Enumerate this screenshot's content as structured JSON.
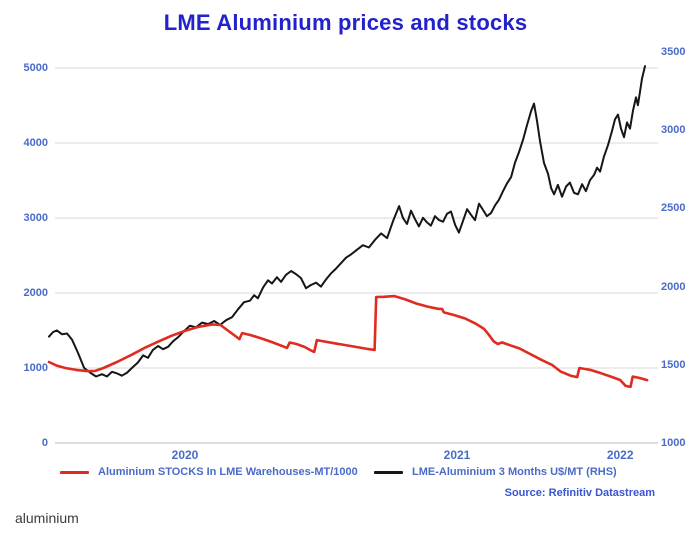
{
  "title": "LME Aluminium prices and stocks",
  "source": "Source: Refinitiv Datastream",
  "watermark": "aluminium",
  "colors": {
    "title": "#2222cc",
    "axis_label": "#4a6bc8",
    "legend_label": "#4a6bc8",
    "source": "#3a55d0",
    "gridline": "#d9d9d9",
    "baseline": "#b8b8b8",
    "stocks_line": "#e02b20",
    "price_line": "#161616"
  },
  "chart_data": {
    "type": "line",
    "title": "LME Aluminium prices and stocks",
    "grid": "horizontal",
    "legend_position": "bottom",
    "x": {
      "range": [
        2020.0,
        2022.25
      ],
      "ticks": [
        {
          "label": "2020",
          "pos": 2020.5
        },
        {
          "label": "2021",
          "pos": 2021.5
        },
        {
          "label": "2022",
          "pos": 2022.1
        }
      ]
    },
    "y_left": {
      "range": [
        0,
        5000
      ],
      "ticks": [
        "0",
        "1000",
        "2000",
        "3000",
        "4000",
        "5000"
      ]
    },
    "y_right": {
      "range": [
        1000,
        3500
      ],
      "ticks": [
        "1000",
        "1500",
        "2000",
        "2500",
        "3000",
        "3500"
      ]
    },
    "series": [
      {
        "name": "LME-Aluminium 3 Months U$/MT (RHS)",
        "axis": "right",
        "color": "#161616",
        "points": [
          [
            2020.0,
            1680
          ],
          [
            2020.015,
            1710
          ],
          [
            2020.029,
            1720
          ],
          [
            2020.048,
            1695
          ],
          [
            2020.066,
            1700
          ],
          [
            2020.085,
            1660
          ],
          [
            2020.107,
            1575
          ],
          [
            2020.129,
            1480
          ],
          [
            2020.151,
            1450
          ],
          [
            2020.173,
            1425
          ],
          [
            2020.195,
            1440
          ],
          [
            2020.213,
            1425
          ],
          [
            2020.232,
            1455
          ],
          [
            2020.25,
            1445
          ],
          [
            2020.268,
            1430
          ],
          [
            2020.287,
            1450
          ],
          [
            2020.305,
            1480
          ],
          [
            2020.327,
            1515
          ],
          [
            2020.346,
            1560
          ],
          [
            2020.364,
            1545
          ],
          [
            2020.382,
            1595
          ],
          [
            2020.401,
            1620
          ],
          [
            2020.419,
            1600
          ],
          [
            2020.438,
            1615
          ],
          [
            2020.456,
            1650
          ],
          [
            2020.474,
            1675
          ],
          [
            2020.496,
            1715
          ],
          [
            2020.518,
            1750
          ],
          [
            2020.54,
            1740
          ],
          [
            2020.563,
            1770
          ],
          [
            2020.585,
            1760
          ],
          [
            2020.607,
            1780
          ],
          [
            2020.629,
            1755
          ],
          [
            2020.651,
            1785
          ],
          [
            2020.673,
            1805
          ],
          [
            2020.695,
            1855
          ],
          [
            2020.717,
            1900
          ],
          [
            2020.739,
            1910
          ],
          [
            2020.754,
            1945
          ],
          [
            2020.768,
            1925
          ],
          [
            2020.787,
            1995
          ],
          [
            2020.805,
            2040
          ],
          [
            2020.82,
            2020
          ],
          [
            2020.838,
            2060
          ],
          [
            2020.853,
            2030
          ],
          [
            2020.871,
            2075
          ],
          [
            2020.89,
            2100
          ],
          [
            2020.908,
            2080
          ],
          [
            2020.926,
            2055
          ],
          [
            2020.945,
            1990
          ],
          [
            2020.963,
            2010
          ],
          [
            2020.982,
            2025
          ],
          [
            2021.0,
            2000
          ],
          [
            2021.018,
            2045
          ],
          [
            2021.037,
            2085
          ],
          [
            2021.055,
            2115
          ],
          [
            2021.074,
            2150
          ],
          [
            2021.092,
            2185
          ],
          [
            2021.11,
            2205
          ],
          [
            2021.132,
            2235
          ],
          [
            2021.154,
            2265
          ],
          [
            2021.176,
            2250
          ],
          [
            2021.199,
            2300
          ],
          [
            2021.221,
            2340
          ],
          [
            2021.243,
            2310
          ],
          [
            2021.265,
            2420
          ],
          [
            2021.287,
            2515
          ],
          [
            2021.301,
            2440
          ],
          [
            2021.316,
            2400
          ],
          [
            2021.331,
            2485
          ],
          [
            2021.346,
            2430
          ],
          [
            2021.36,
            2385
          ],
          [
            2021.375,
            2440
          ],
          [
            2021.39,
            2410
          ],
          [
            2021.404,
            2390
          ],
          [
            2021.419,
            2450
          ],
          [
            2021.434,
            2425
          ],
          [
            2021.449,
            2415
          ],
          [
            2021.463,
            2465
          ],
          [
            2021.478,
            2480
          ],
          [
            2021.493,
            2395
          ],
          [
            2021.507,
            2345
          ],
          [
            2021.522,
            2420
          ],
          [
            2021.537,
            2495
          ],
          [
            2021.551,
            2460
          ],
          [
            2021.566,
            2425
          ],
          [
            2021.581,
            2530
          ],
          [
            2021.596,
            2490
          ],
          [
            2021.61,
            2450
          ],
          [
            2021.625,
            2470
          ],
          [
            2021.64,
            2520
          ],
          [
            2021.654,
            2555
          ],
          [
            2021.669,
            2610
          ],
          [
            2021.684,
            2660
          ],
          [
            2021.699,
            2700
          ],
          [
            2021.713,
            2790
          ],
          [
            2021.728,
            2860
          ],
          [
            2021.743,
            2940
          ],
          [
            2021.757,
            3030
          ],
          [
            2021.772,
            3120
          ],
          [
            2021.783,
            3170
          ],
          [
            2021.794,
            3060
          ],
          [
            2021.805,
            2930
          ],
          [
            2021.82,
            2790
          ],
          [
            2021.835,
            2720
          ],
          [
            2021.846,
            2630
          ],
          [
            2021.857,
            2590
          ],
          [
            2021.871,
            2650
          ],
          [
            2021.886,
            2575
          ],
          [
            2021.901,
            2640
          ],
          [
            2021.915,
            2665
          ],
          [
            2021.93,
            2600
          ],
          [
            2021.945,
            2590
          ],
          [
            2021.96,
            2655
          ],
          [
            2021.974,
            2610
          ],
          [
            2021.989,
            2680
          ],
          [
            2022.004,
            2715
          ],
          [
            2022.015,
            2760
          ],
          [
            2022.026,
            2735
          ],
          [
            2022.04,
            2830
          ],
          [
            2022.055,
            2905
          ],
          [
            2022.07,
            2995
          ],
          [
            2022.081,
            3070
          ],
          [
            2022.092,
            3100
          ],
          [
            2022.103,
            3010
          ],
          [
            2022.114,
            2955
          ],
          [
            2022.125,
            3050
          ],
          [
            2022.136,
            3010
          ],
          [
            2022.147,
            3125
          ],
          [
            2022.158,
            3210
          ],
          [
            2022.165,
            3160
          ],
          [
            2022.173,
            3250
          ],
          [
            2022.18,
            3330
          ],
          [
            2022.191,
            3410
          ]
        ]
      },
      {
        "name": "Aluminium STOCKS In LME Warehouses-MT/1000",
        "axis": "left",
        "color": "#e02b20",
        "points": [
          [
            2020.0,
            1080
          ],
          [
            2020.03,
            1030
          ],
          [
            2020.06,
            1000
          ],
          [
            2020.1,
            975
          ],
          [
            2020.14,
            958
          ],
          [
            2020.17,
            962
          ],
          [
            2020.2,
            1000
          ],
          [
            2020.25,
            1080
          ],
          [
            2020.3,
            1170
          ],
          [
            2020.35,
            1265
          ],
          [
            2020.4,
            1350
          ],
          [
            2020.45,
            1430
          ],
          [
            2020.5,
            1495
          ],
          [
            2020.55,
            1550
          ],
          [
            2020.6,
            1580
          ],
          [
            2020.63,
            1575
          ],
          [
            2020.65,
            1520
          ],
          [
            2020.68,
            1440
          ],
          [
            2020.7,
            1385
          ],
          [
            2020.71,
            1465
          ],
          [
            2020.74,
            1440
          ],
          [
            2020.78,
            1395
          ],
          [
            2020.82,
            1345
          ],
          [
            2020.86,
            1290
          ],
          [
            2020.875,
            1268
          ],
          [
            2020.885,
            1340
          ],
          [
            2020.91,
            1320
          ],
          [
            2020.94,
            1280
          ],
          [
            2020.96,
            1240
          ],
          [
            2020.975,
            1215
          ],
          [
            2020.985,
            1372
          ],
          [
            2021.01,
            1355
          ],
          [
            2021.05,
            1330
          ],
          [
            2021.09,
            1305
          ],
          [
            2021.13,
            1280
          ],
          [
            2021.17,
            1255
          ],
          [
            2021.197,
            1242
          ],
          [
            2021.203,
            1945
          ],
          [
            2021.23,
            1950
          ],
          [
            2021.27,
            1958
          ],
          [
            2021.31,
            1915
          ],
          [
            2021.35,
            1860
          ],
          [
            2021.39,
            1820
          ],
          [
            2021.43,
            1790
          ],
          [
            2021.445,
            1788
          ],
          [
            2021.452,
            1742
          ],
          [
            2021.49,
            1705
          ],
          [
            2021.53,
            1660
          ],
          [
            2021.57,
            1590
          ],
          [
            2021.6,
            1520
          ],
          [
            2021.62,
            1430
          ],
          [
            2021.635,
            1355
          ],
          [
            2021.65,
            1320
          ],
          [
            2021.665,
            1342
          ],
          [
            2021.69,
            1310
          ],
          [
            2021.73,
            1260
          ],
          [
            2021.77,
            1185
          ],
          [
            2021.81,
            1110
          ],
          [
            2021.85,
            1040
          ],
          [
            2021.88,
            955
          ],
          [
            2021.92,
            895
          ],
          [
            2021.942,
            878
          ],
          [
            2021.95,
            1000
          ],
          [
            2021.99,
            975
          ],
          [
            2022.03,
            930
          ],
          [
            2022.07,
            880
          ],
          [
            2022.1,
            840
          ],
          [
            2022.12,
            762
          ],
          [
            2022.138,
            748
          ],
          [
            2022.146,
            885
          ],
          [
            2022.17,
            868
          ],
          [
            2022.199,
            838
          ]
        ]
      }
    ]
  },
  "legend": {
    "stocks_label": "Aluminium STOCKS In LME Warehouses-MT/1000",
    "price_label": "LME-Aluminium 3 Months U$/MT (RHS)"
  }
}
